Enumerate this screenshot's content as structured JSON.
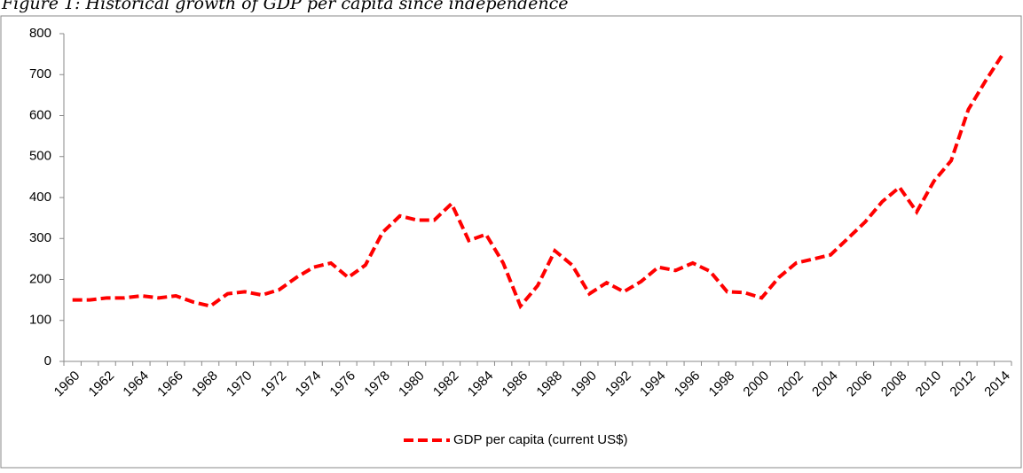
{
  "chart_data": {
    "type": "line",
    "title": "Figure 1: Historical growth of GDP per capita since independence",
    "categories": [
      "1960",
      null,
      "1962",
      null,
      "1964",
      null,
      "1966",
      null,
      "1968",
      null,
      "1970",
      null,
      "1972",
      null,
      "1974",
      null,
      "1976",
      null,
      "1978",
      null,
      "1980",
      null,
      "1982",
      null,
      "1984",
      null,
      "1986",
      null,
      "1988",
      null,
      "1990",
      null,
      "1992",
      null,
      "1994",
      null,
      "1996",
      null,
      "1998",
      null,
      "2000",
      null,
      "2002",
      null,
      "2004",
      null,
      "2006",
      null,
      "2008",
      null,
      "2010",
      null,
      "2012",
      null,
      "2014"
    ],
    "series": [
      {
        "name": "GDP per capita (current US$)",
        "color": "#ff0000",
        "values": [
          150,
          150,
          155,
          155,
          160,
          155,
          160,
          145,
          135,
          165,
          170,
          162,
          175,
          205,
          230,
          240,
          205,
          235,
          315,
          355,
          345,
          345,
          385,
          295,
          310,
          240,
          135,
          185,
          270,
          235,
          165,
          192,
          170,
          195,
          230,
          222,
          240,
          220,
          170,
          168,
          155,
          205,
          240,
          250,
          260,
          300,
          340,
          390,
          425,
          365,
          440,
          490,
          615,
          685,
          750
        ]
      }
    ],
    "ylim": [
      0,
      800
    ],
    "yticks": [
      0,
      100,
      200,
      300,
      400,
      500,
      600,
      700,
      800
    ],
    "legend": "bottom"
  }
}
